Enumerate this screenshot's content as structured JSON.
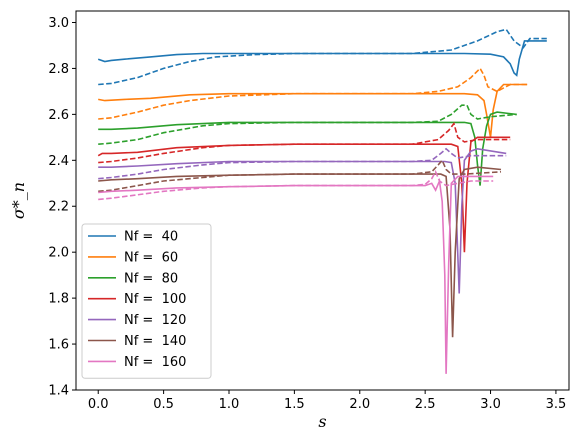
{
  "chart_data": {
    "type": "line",
    "title": "",
    "xlabel": "s",
    "ylabel": "σ*_n",
    "xlim": [
      -0.17,
      3.6
    ],
    "ylim": [
      1.4,
      3.05
    ],
    "xticks": [
      "0.0",
      "0.5",
      "1.0",
      "1.5",
      "2.0",
      "2.5",
      "3.0",
      "3.5"
    ],
    "yticks": [
      "1.4",
      "1.6",
      "1.8",
      "2.0",
      "2.2",
      "2.4",
      "2.6",
      "2.8",
      "3.0"
    ],
    "xtick_values": [
      0.0,
      0.5,
      1.0,
      1.5,
      2.0,
      2.5,
      3.0,
      3.5
    ],
    "ytick_values": [
      1.4,
      1.6,
      1.8,
      2.0,
      2.2,
      2.4,
      2.6,
      2.8,
      3.0
    ],
    "grid": false,
    "legend_position": "lower-left",
    "legend_note": "solid and dashed curves share the legend color per Nf",
    "series": [
      {
        "name": "Nf =  40",
        "color": "#1f77b4",
        "solid": [
          [
            0.0,
            2.84
          ],
          [
            0.05,
            2.83
          ],
          [
            0.1,
            2.835
          ],
          [
            0.2,
            2.84
          ],
          [
            0.4,
            2.85
          ],
          [
            0.6,
            2.86
          ],
          [
            0.8,
            2.865
          ],
          [
            1.0,
            2.865
          ],
          [
            1.5,
            2.865
          ],
          [
            2.0,
            2.865
          ],
          [
            2.5,
            2.865
          ],
          [
            2.8,
            2.865
          ],
          [
            3.0,
            2.862
          ],
          [
            3.1,
            2.85
          ],
          [
            3.15,
            2.82
          ],
          [
            3.18,
            2.78
          ],
          [
            3.2,
            2.77
          ],
          [
            3.22,
            2.84
          ],
          [
            3.26,
            2.92
          ],
          [
            3.3,
            2.92
          ],
          [
            3.43,
            2.92
          ]
        ],
        "dashed": [
          [
            0.0,
            2.73
          ],
          [
            0.1,
            2.735
          ],
          [
            0.3,
            2.76
          ],
          [
            0.5,
            2.8
          ],
          [
            0.7,
            2.83
          ],
          [
            0.9,
            2.85
          ],
          [
            1.2,
            2.86
          ],
          [
            1.5,
            2.865
          ],
          [
            2.0,
            2.865
          ],
          [
            2.4,
            2.865
          ],
          [
            2.7,
            2.88
          ],
          [
            2.9,
            2.92
          ],
          [
            3.05,
            2.96
          ],
          [
            3.12,
            2.97
          ],
          [
            3.18,
            2.92
          ],
          [
            3.25,
            2.89
          ],
          [
            3.3,
            2.93
          ],
          [
            3.43,
            2.93
          ]
        ]
      },
      {
        "name": "Nf =  60",
        "color": "#ff7f0e",
        "solid": [
          [
            0.0,
            2.665
          ],
          [
            0.05,
            2.66
          ],
          [
            0.2,
            2.665
          ],
          [
            0.4,
            2.67
          ],
          [
            0.7,
            2.685
          ],
          [
            1.0,
            2.69
          ],
          [
            1.5,
            2.69
          ],
          [
            2.0,
            2.69
          ],
          [
            2.5,
            2.69
          ],
          [
            2.8,
            2.69
          ],
          [
            2.9,
            2.685
          ],
          [
            2.95,
            2.66
          ],
          [
            2.97,
            2.6
          ],
          [
            3.0,
            2.5
          ],
          [
            3.02,
            2.62
          ],
          [
            3.05,
            2.7
          ],
          [
            3.1,
            2.73
          ],
          [
            3.28,
            2.73
          ]
        ],
        "dashed": [
          [
            0.0,
            2.58
          ],
          [
            0.1,
            2.585
          ],
          [
            0.3,
            2.61
          ],
          [
            0.5,
            2.64
          ],
          [
            0.7,
            2.66
          ],
          [
            1.0,
            2.68
          ],
          [
            1.5,
            2.69
          ],
          [
            2.0,
            2.69
          ],
          [
            2.4,
            2.69
          ],
          [
            2.6,
            2.7
          ],
          [
            2.75,
            2.72
          ],
          [
            2.85,
            2.76
          ],
          [
            2.92,
            2.8
          ],
          [
            2.95,
            2.77
          ],
          [
            2.98,
            2.72
          ],
          [
            3.05,
            2.7
          ],
          [
            3.15,
            2.73
          ],
          [
            3.28,
            2.73
          ]
        ]
      },
      {
        "name": "Nf =  80",
        "color": "#2ca02c",
        "solid": [
          [
            0.0,
            2.535
          ],
          [
            0.1,
            2.535
          ],
          [
            0.3,
            2.54
          ],
          [
            0.6,
            2.555
          ],
          [
            1.0,
            2.565
          ],
          [
            1.5,
            2.565
          ],
          [
            2.0,
            2.565
          ],
          [
            2.5,
            2.565
          ],
          [
            2.8,
            2.565
          ],
          [
            2.85,
            2.56
          ],
          [
            2.88,
            2.5
          ],
          [
            2.9,
            2.38
          ],
          [
            2.92,
            2.29
          ],
          [
            2.94,
            2.45
          ],
          [
            2.97,
            2.55
          ],
          [
            3.0,
            2.6
          ],
          [
            3.05,
            2.61
          ],
          [
            3.2,
            2.6
          ]
        ],
        "dashed": [
          [
            0.0,
            2.47
          ],
          [
            0.1,
            2.475
          ],
          [
            0.3,
            2.49
          ],
          [
            0.5,
            2.52
          ],
          [
            0.8,
            2.55
          ],
          [
            1.0,
            2.56
          ],
          [
            1.5,
            2.565
          ],
          [
            2.0,
            2.565
          ],
          [
            2.4,
            2.565
          ],
          [
            2.6,
            2.57
          ],
          [
            2.7,
            2.6
          ],
          [
            2.78,
            2.64
          ],
          [
            2.82,
            2.64
          ],
          [
            2.85,
            2.6
          ],
          [
            2.9,
            2.58
          ],
          [
            3.0,
            2.59
          ],
          [
            3.2,
            2.6
          ]
        ]
      },
      {
        "name": "Nf =  100",
        "color": "#d62728",
        "solid": [
          [
            0.0,
            2.42
          ],
          [
            0.03,
            2.43
          ],
          [
            0.1,
            2.43
          ],
          [
            0.3,
            2.435
          ],
          [
            0.6,
            2.455
          ],
          [
            1.0,
            2.465
          ],
          [
            1.5,
            2.47
          ],
          [
            2.0,
            2.47
          ],
          [
            2.5,
            2.47
          ],
          [
            2.7,
            2.47
          ],
          [
            2.75,
            2.46
          ],
          [
            2.78,
            2.3
          ],
          [
            2.8,
            2.0
          ],
          [
            2.82,
            2.3
          ],
          [
            2.85,
            2.48
          ],
          [
            2.9,
            2.5
          ],
          [
            3.15,
            2.5
          ]
        ],
        "dashed": [
          [
            0.0,
            2.39
          ],
          [
            0.1,
            2.395
          ],
          [
            0.3,
            2.41
          ],
          [
            0.5,
            2.43
          ],
          [
            0.8,
            2.455
          ],
          [
            1.0,
            2.465
          ],
          [
            1.5,
            2.47
          ],
          [
            2.0,
            2.47
          ],
          [
            2.4,
            2.47
          ],
          [
            2.6,
            2.49
          ],
          [
            2.68,
            2.53
          ],
          [
            2.72,
            2.56
          ],
          [
            2.75,
            2.5
          ],
          [
            2.8,
            2.48
          ],
          [
            2.9,
            2.49
          ],
          [
            3.15,
            2.49
          ]
        ]
      },
      {
        "name": "Nf =  120",
        "color": "#9467bd",
        "solid": [
          [
            0.0,
            2.37
          ],
          [
            0.1,
            2.37
          ],
          [
            0.3,
            2.375
          ],
          [
            0.6,
            2.385
          ],
          [
            1.0,
            2.395
          ],
          [
            1.5,
            2.395
          ],
          [
            2.0,
            2.395
          ],
          [
            2.5,
            2.395
          ],
          [
            2.65,
            2.395
          ],
          [
            2.7,
            2.39
          ],
          [
            2.73,
            2.3
          ],
          [
            2.76,
            1.82
          ],
          [
            2.78,
            2.2
          ],
          [
            2.8,
            2.4
          ],
          [
            2.85,
            2.44
          ],
          [
            2.9,
            2.45
          ],
          [
            3.12,
            2.43
          ]
        ],
        "dashed": [
          [
            0.0,
            2.32
          ],
          [
            0.1,
            2.325
          ],
          [
            0.3,
            2.34
          ],
          [
            0.5,
            2.36
          ],
          [
            0.8,
            2.38
          ],
          [
            1.0,
            2.39
          ],
          [
            1.5,
            2.395
          ],
          [
            2.0,
            2.395
          ],
          [
            2.4,
            2.395
          ],
          [
            2.55,
            2.4
          ],
          [
            2.62,
            2.43
          ],
          [
            2.66,
            2.45
          ],
          [
            2.7,
            2.43
          ],
          [
            2.75,
            2.41
          ],
          [
            2.85,
            2.42
          ],
          [
            3.12,
            2.42
          ]
        ]
      },
      {
        "name": "Nf =  140",
        "color": "#8c564b",
        "solid": [
          [
            0.0,
            2.31
          ],
          [
            0.1,
            2.315
          ],
          [
            0.3,
            2.32
          ],
          [
            0.6,
            2.33
          ],
          [
            1.0,
            2.335
          ],
          [
            1.5,
            2.34
          ],
          [
            2.0,
            2.34
          ],
          [
            2.5,
            2.34
          ],
          [
            2.62,
            2.34
          ],
          [
            2.66,
            2.33
          ],
          [
            2.69,
            2.1
          ],
          [
            2.71,
            1.63
          ],
          [
            2.73,
            2.0
          ],
          [
            2.76,
            2.32
          ],
          [
            2.8,
            2.36
          ],
          [
            2.9,
            2.37
          ],
          [
            3.08,
            2.36
          ]
        ],
        "dashed": [
          [
            0.0,
            2.265
          ],
          [
            0.1,
            2.27
          ],
          [
            0.3,
            2.29
          ],
          [
            0.5,
            2.31
          ],
          [
            0.8,
            2.325
          ],
          [
            1.0,
            2.335
          ],
          [
            1.5,
            2.34
          ],
          [
            2.0,
            2.34
          ],
          [
            2.4,
            2.34
          ],
          [
            2.55,
            2.35
          ],
          [
            2.6,
            2.38
          ],
          [
            2.63,
            2.4
          ],
          [
            2.66,
            2.36
          ],
          [
            2.7,
            2.34
          ],
          [
            2.8,
            2.34
          ],
          [
            3.08,
            2.35
          ]
        ]
      },
      {
        "name": "Nf =  160",
        "color": "#e377c2",
        "solid": [
          [
            0.0,
            2.26
          ],
          [
            0.1,
            2.265
          ],
          [
            0.3,
            2.27
          ],
          [
            0.6,
            2.28
          ],
          [
            1.0,
            2.285
          ],
          [
            1.5,
            2.29
          ],
          [
            2.0,
            2.29
          ],
          [
            2.4,
            2.29
          ],
          [
            2.5,
            2.29
          ],
          [
            2.55,
            2.3
          ],
          [
            2.58,
            2.27
          ],
          [
            2.61,
            2.31
          ],
          [
            2.63,
            2.22
          ],
          [
            2.65,
            1.9
          ],
          [
            2.66,
            1.47
          ],
          [
            2.68,
            1.95
          ],
          [
            2.7,
            2.3
          ],
          [
            2.75,
            2.33
          ],
          [
            2.85,
            2.33
          ],
          [
            3.02,
            2.33
          ]
        ],
        "dashed": [
          [
            0.0,
            2.23
          ],
          [
            0.1,
            2.235
          ],
          [
            0.3,
            2.25
          ],
          [
            0.5,
            2.265
          ],
          [
            0.8,
            2.28
          ],
          [
            1.0,
            2.285
          ],
          [
            1.5,
            2.29
          ],
          [
            2.0,
            2.29
          ],
          [
            2.4,
            2.29
          ],
          [
            2.5,
            2.295
          ],
          [
            2.55,
            2.32
          ],
          [
            2.58,
            2.35
          ],
          [
            2.61,
            2.31
          ],
          [
            2.66,
            2.29
          ],
          [
            2.75,
            2.3
          ],
          [
            2.85,
            2.31
          ],
          [
            3.02,
            2.31
          ]
        ]
      }
    ]
  }
}
